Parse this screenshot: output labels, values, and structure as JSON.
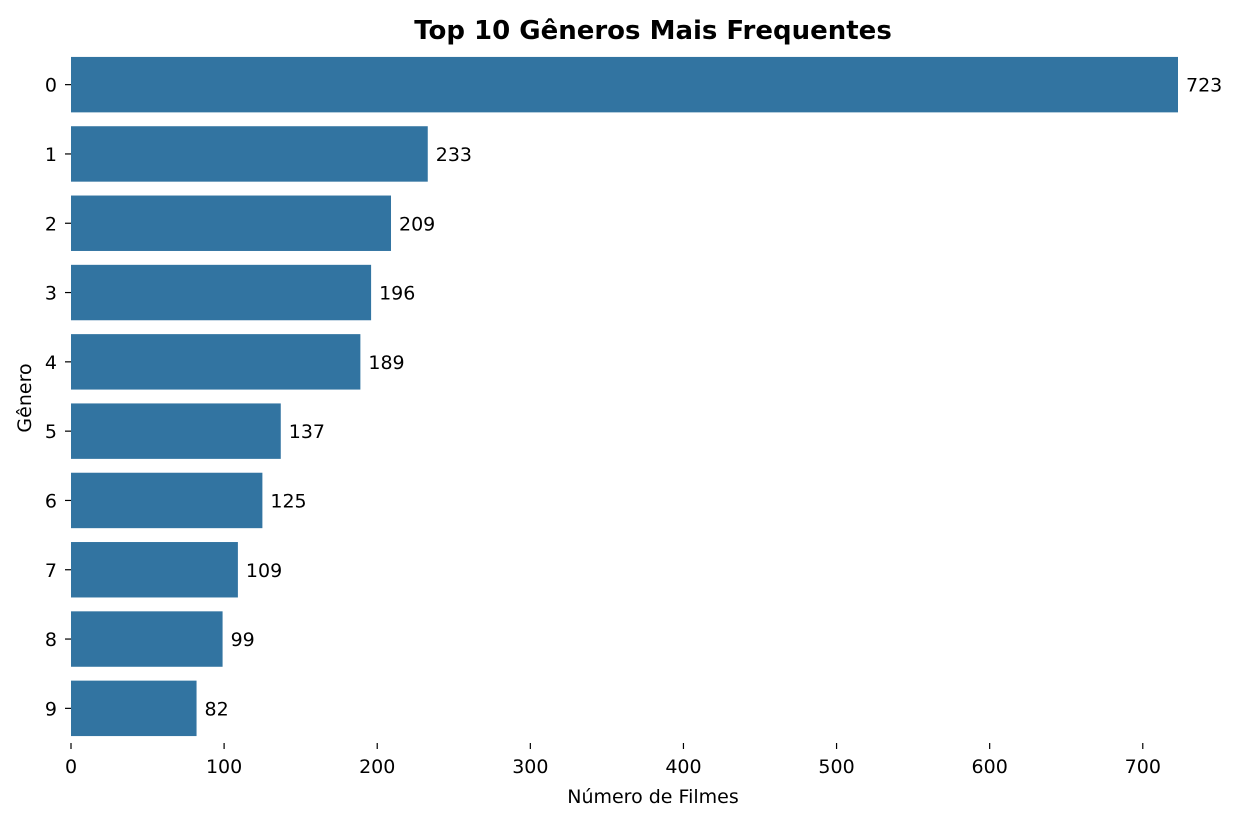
{
  "chart_data": {
    "type": "bar",
    "orientation": "horizontal",
    "title": "Top 10 Gêneros Mais Frequentes",
    "xlabel": "Número de Filmes",
    "ylabel": "Gênero",
    "categories": [
      "0",
      "1",
      "2",
      "3",
      "4",
      "5",
      "6",
      "7",
      "8",
      "9"
    ],
    "values": [
      723,
      233,
      209,
      196,
      189,
      137,
      125,
      109,
      99,
      82
    ],
    "data_labels": [
      "723",
      "233",
      "209",
      "196",
      "189",
      "137",
      "125",
      "109",
      "99",
      "82"
    ],
    "xlim": [
      0,
      723
    ],
    "x_ticks": [
      0,
      100,
      200,
      300,
      400,
      500,
      600,
      700
    ],
    "x_tick_labels": [
      "0",
      "100",
      "200",
      "300",
      "400",
      "500",
      "600",
      "700"
    ],
    "bar_color": "#3274a1",
    "grid": false,
    "legend": "none"
  }
}
